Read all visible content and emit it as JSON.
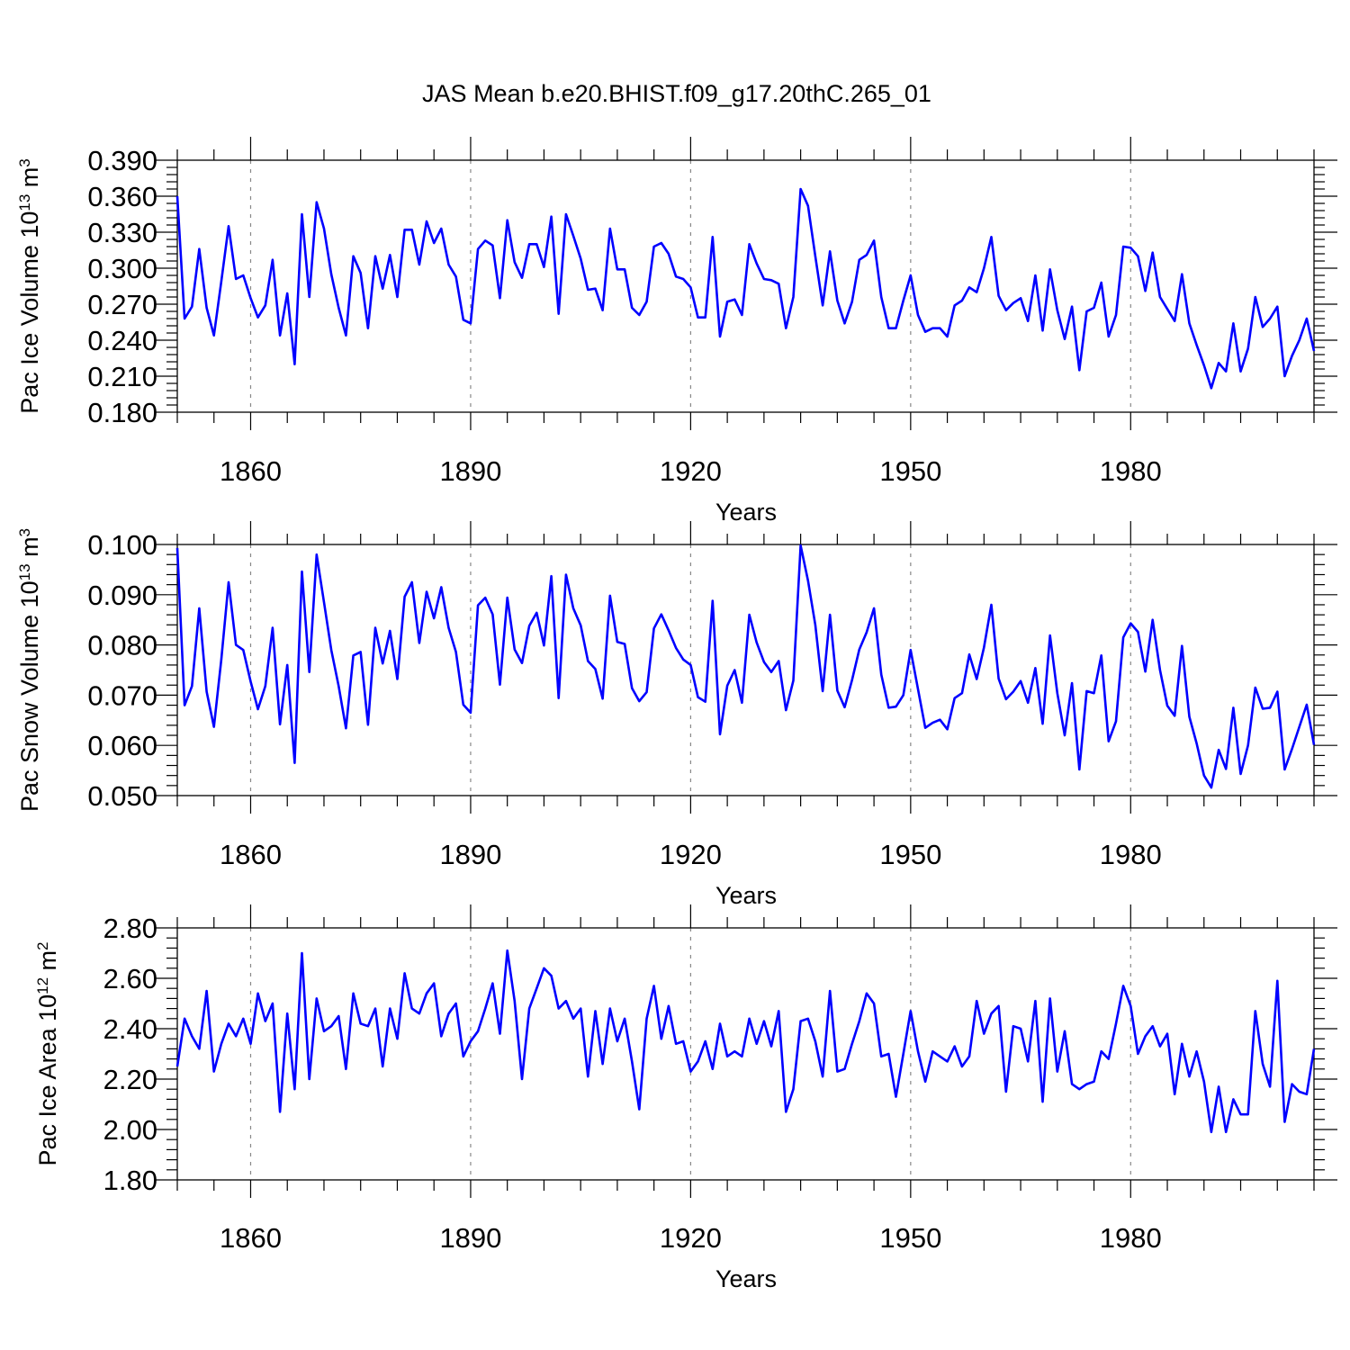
{
  "title": "JAS Mean b.e20.BHIST.f09_g17.20thC.265_01",
  "colors": {
    "series": "#0000ff",
    "axes": "#000000",
    "grid": "#888888"
  },
  "chart_data": [
    {
      "type": "line",
      "name": "ice-volume",
      "ylabel_base": "Pac Ice Volume 10",
      "ylabel_exp": "13",
      "ylabel_unit": "m",
      "ylabel_unit_exp": "3",
      "xlabel": "Years",
      "xlim": [
        1850,
        2005
      ],
      "ylim": [
        0.18,
        0.39
      ],
      "x_ticks": [
        1860,
        1890,
        1920,
        1950,
        1980
      ],
      "x_tick_labels": [
        "1860",
        "1890",
        "1920",
        "1950",
        "1980"
      ],
      "y_ticks": [
        0.18,
        0.21,
        0.24,
        0.27,
        0.3,
        0.33,
        0.36,
        0.39
      ],
      "y_tick_labels": [
        "0.180",
        "0.210",
        "0.240",
        "0.270",
        "0.300",
        "0.330",
        "0.360",
        "0.390"
      ],
      "grid": "vertical dashed at major x ticks",
      "start_year": 1850,
      "values": [
        0.36,
        0.258,
        0.268,
        0.316,
        0.267,
        0.244,
        0.289,
        0.335,
        0.291,
        0.294,
        0.275,
        0.259,
        0.269,
        0.307,
        0.244,
        0.279,
        0.22,
        0.345,
        0.276,
        0.355,
        0.333,
        0.295,
        0.267,
        0.244,
        0.31,
        0.296,
        0.25,
        0.31,
        0.283,
        0.311,
        0.276,
        0.332,
        0.332,
        0.303,
        0.339,
        0.321,
        0.333,
        0.303,
        0.293,
        0.257,
        0.254,
        0.316,
        0.323,
        0.319,
        0.275,
        0.34,
        0.305,
        0.292,
        0.32,
        0.32,
        0.301,
        0.343,
        0.262,
        0.345,
        0.327,
        0.308,
        0.282,
        0.283,
        0.265,
        0.333,
        0.299,
        0.299,
        0.267,
        0.261,
        0.272,
        0.318,
        0.321,
        0.312,
        0.293,
        0.291,
        0.284,
        0.259,
        0.259,
        0.326,
        0.243,
        0.272,
        0.274,
        0.261,
        0.32,
        0.304,
        0.291,
        0.29,
        0.287,
        0.25,
        0.276,
        0.366,
        0.352,
        0.31,
        0.269,
        0.314,
        0.273,
        0.254,
        0.272,
        0.307,
        0.311,
        0.323,
        0.276,
        0.25,
        0.25,
        0.273,
        0.294,
        0.261,
        0.247,
        0.25,
        0.25,
        0.243,
        0.269,
        0.273,
        0.284,
        0.28,
        0.3,
        0.326,
        0.277,
        0.265,
        0.271,
        0.275,
        0.256,
        0.294,
        0.248,
        0.299,
        0.265,
        0.241,
        0.268,
        0.215,
        0.264,
        0.267,
        0.288,
        0.243,
        0.261,
        0.318,
        0.317,
        0.31,
        0.281,
        0.313,
        0.276,
        0.266,
        0.256,
        0.295,
        0.254,
        0.236,
        0.219,
        0.2,
        0.221,
        0.214,
        0.254,
        0.214,
        0.233,
        0.276,
        0.251,
        0.258,
        0.268,
        0.21,
        0.227,
        0.24,
        0.258,
        0.231
      ]
    },
    {
      "type": "line",
      "name": "snow-volume",
      "ylabel_base": "Pac Snow Volume 10",
      "ylabel_exp": "13",
      "ylabel_unit": "m",
      "ylabel_unit_exp": "3",
      "xlabel": "Years",
      "xlim": [
        1850,
        2005
      ],
      "ylim": [
        0.05,
        0.1
      ],
      "x_ticks": [
        1860,
        1890,
        1920,
        1950,
        1980
      ],
      "x_tick_labels": [
        "1860",
        "1890",
        "1920",
        "1950",
        "1980"
      ],
      "y_ticks": [
        0.05,
        0.06,
        0.07,
        0.08,
        0.09,
        0.1
      ],
      "y_tick_labels": [
        "0.050",
        "0.060",
        "0.070",
        "0.080",
        "0.090",
        "0.100"
      ],
      "grid": "vertical dashed at major x ticks",
      "start_year": 1850,
      "values": [
        0.0993,
        0.068,
        0.0718,
        0.0873,
        0.0707,
        0.0637,
        0.0771,
        0.0925,
        0.08,
        0.079,
        0.0727,
        0.0672,
        0.0718,
        0.0834,
        0.0642,
        0.076,
        0.0565,
        0.0946,
        0.0746,
        0.098,
        0.0885,
        0.079,
        0.0718,
        0.0634,
        0.0779,
        0.0786,
        0.0641,
        0.0834,
        0.0763,
        0.0828,
        0.0732,
        0.0896,
        0.0925,
        0.0804,
        0.0906,
        0.0853,
        0.0915,
        0.0834,
        0.0786,
        0.0681,
        0.0665,
        0.0879,
        0.0894,
        0.0861,
        0.0721,
        0.0894,
        0.0791,
        0.0764,
        0.0838,
        0.0864,
        0.0799,
        0.0937,
        0.0694,
        0.094,
        0.0873,
        0.0839,
        0.0768,
        0.0752,
        0.0693,
        0.0898,
        0.0806,
        0.0802,
        0.0714,
        0.0688,
        0.0706,
        0.0833,
        0.0861,
        0.0829,
        0.0794,
        0.0771,
        0.076,
        0.0696,
        0.0687,
        0.0888,
        0.0622,
        0.0719,
        0.075,
        0.0685,
        0.086,
        0.0805,
        0.0766,
        0.0746,
        0.0768,
        0.067,
        0.0729,
        0.0998,
        0.0928,
        0.084,
        0.0708,
        0.086,
        0.0709,
        0.0676,
        0.073,
        0.0791,
        0.0825,
        0.0873,
        0.0741,
        0.0675,
        0.0677,
        0.07,
        0.079,
        0.0712,
        0.0635,
        0.0645,
        0.0651,
        0.0632,
        0.0694,
        0.0704,
        0.0781,
        0.0732,
        0.0795,
        0.088,
        0.0733,
        0.0692,
        0.0707,
        0.0728,
        0.0685,
        0.0754,
        0.0643,
        0.0819,
        0.0704,
        0.062,
        0.0724,
        0.0552,
        0.0708,
        0.0704,
        0.0779,
        0.0608,
        0.0648,
        0.0815,
        0.0843,
        0.0826,
        0.0747,
        0.085,
        0.075,
        0.0679,
        0.0659,
        0.0798,
        0.0657,
        0.0604,
        0.054,
        0.0516,
        0.0591,
        0.0553,
        0.0675,
        0.0543,
        0.06,
        0.0715,
        0.0673,
        0.0675,
        0.0707,
        0.0552,
        0.0593,
        0.0637,
        0.0681,
        0.0601
      ]
    },
    {
      "type": "line",
      "name": "ice-area",
      "ylabel_base": "Pac Ice Area 10",
      "ylabel_exp": "12",
      "ylabel_unit": "m",
      "ylabel_unit_exp": "2",
      "xlabel": "Years",
      "xlim": [
        1850,
        2005
      ],
      "ylim": [
        1.8,
        2.8
      ],
      "x_ticks": [
        1860,
        1890,
        1920,
        1950,
        1980
      ],
      "x_tick_labels": [
        "1860",
        "1890",
        "1920",
        "1950",
        "1980"
      ],
      "y_ticks": [
        1.8,
        2.0,
        2.2,
        2.4,
        2.6,
        2.8
      ],
      "y_tick_labels": [
        "1.80",
        "2.00",
        "2.20",
        "2.40",
        "2.60",
        "2.80"
      ],
      "grid": "vertical dashed at major x ticks",
      "start_year": 1850,
      "values": [
        2.25,
        2.44,
        2.37,
        2.32,
        2.55,
        2.23,
        2.34,
        2.42,
        2.37,
        2.44,
        2.34,
        2.54,
        2.43,
        2.5,
        2.07,
        2.46,
        2.16,
        2.7,
        2.2,
        2.52,
        2.39,
        2.41,
        2.45,
        2.24,
        2.54,
        2.42,
        2.41,
        2.48,
        2.25,
        2.48,
        2.36,
        2.62,
        2.48,
        2.46,
        2.54,
        2.58,
        2.37,
        2.46,
        2.5,
        2.29,
        2.35,
        2.39,
        2.48,
        2.58,
        2.38,
        2.71,
        2.51,
        2.2,
        2.48,
        2.56,
        2.64,
        2.61,
        2.48,
        2.51,
        2.44,
        2.48,
        2.21,
        2.47,
        2.26,
        2.48,
        2.35,
        2.44,
        2.27,
        2.08,
        2.44,
        2.57,
        2.36,
        2.49,
        2.34,
        2.35,
        2.23,
        2.27,
        2.35,
        2.24,
        2.42,
        2.29,
        2.31,
        2.29,
        2.44,
        2.34,
        2.43,
        2.33,
        2.47,
        2.07,
        2.16,
        2.43,
        2.44,
        2.35,
        2.21,
        2.55,
        2.23,
        2.24,
        2.34,
        2.43,
        2.54,
        2.5,
        2.29,
        2.3,
        2.13,
        2.3,
        2.47,
        2.31,
        2.19,
        2.31,
        2.29,
        2.27,
        2.33,
        2.25,
        2.29,
        2.51,
        2.38,
        2.46,
        2.49,
        2.15,
        2.41,
        2.4,
        2.27,
        2.51,
        2.11,
        2.52,
        2.23,
        2.39,
        2.18,
        2.16,
        2.18,
        2.19,
        2.31,
        2.28,
        2.42,
        2.57,
        2.49,
        2.3,
        2.37,
        2.41,
        2.33,
        2.38,
        2.14,
        2.34,
        2.21,
        2.31,
        2.19,
        1.99,
        2.17,
        1.99,
        2.12,
        2.06,
        2.06,
        2.47,
        2.26,
        2.17,
        2.59,
        2.03,
        2.18,
        2.15,
        2.14,
        2.32
      ]
    }
  ]
}
